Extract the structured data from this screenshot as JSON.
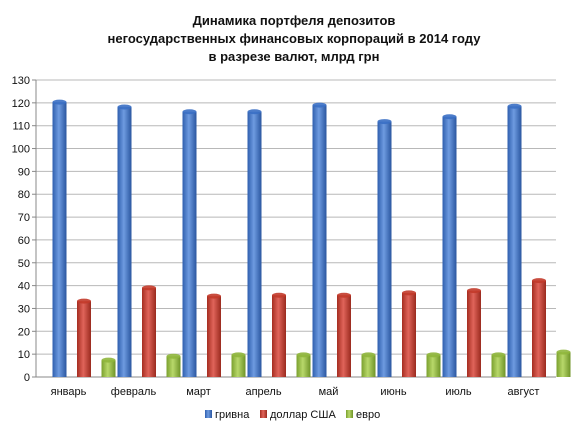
{
  "chart_data": {
    "type": "bar",
    "title": [
      "Динамика портфеля депозитов",
      "негосударственных финансовых корпораций в 2014 году",
      "в разрезе валют, млрд грн"
    ],
    "xlabel": "",
    "ylabel": "",
    "ylim": [
      0,
      130
    ],
    "yticks": [
      0,
      10,
      20,
      30,
      40,
      50,
      60,
      70,
      80,
      90,
      100,
      110,
      120,
      130
    ],
    "categories": [
      "январь",
      "февраль",
      "март",
      "апрель",
      "май",
      "июнь",
      "июль",
      "август"
    ],
    "series": [
      {
        "name": "гривна",
        "color": "#3a6fc4",
        "values": [
          120.3,
          118.2,
          116.1,
          116.1,
          119.0,
          111.8,
          113.9,
          118.5
        ]
      },
      {
        "name": "доллар США",
        "color": "#c23a2a",
        "values": [
          33.2,
          39.0,
          35.4,
          35.8,
          35.8,
          36.8,
          37.8,
          42.2
        ]
      },
      {
        "name": "евро",
        "color": "#8fb63c",
        "values": [
          7.4,
          9.1,
          9.7,
          9.7,
          9.7,
          9.7,
          9.7,
          10.9
        ]
      }
    ],
    "grid": true,
    "legend": "bottom"
  }
}
